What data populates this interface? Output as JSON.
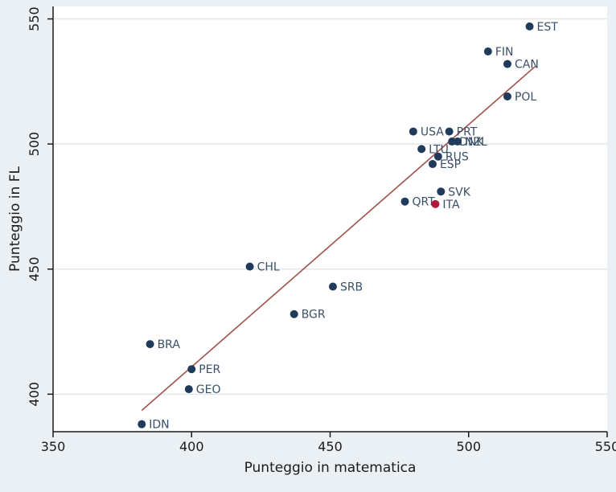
{
  "chart_data": {
    "type": "scatter",
    "title": "",
    "xlabel": "Punteggio in matematica",
    "ylabel": "Punteggio in FL",
    "xlim": [
      350,
      550
    ],
    "ylim": [
      385,
      555
    ],
    "xticks": [
      350,
      400,
      450,
      500,
      550
    ],
    "yticks": [
      400,
      450,
      500,
      550
    ],
    "grid": "horizontal",
    "legend": "none",
    "colors": {
      "background": "#eaf0f3",
      "plot_background": "#ffffff",
      "grid": "#e1e8ec",
      "point": "#1f3a5a",
      "highlight_point": "#b2183a",
      "label": "#3a4f68",
      "fit_line": "#a0504c"
    },
    "points": [
      {
        "label": "EST",
        "x": 522,
        "y": 547
      },
      {
        "label": "FIN",
        "x": 507,
        "y": 537
      },
      {
        "label": "CAN",
        "x": 514,
        "y": 532
      },
      {
        "label": "POL",
        "x": 514,
        "y": 519
      },
      {
        "label": "USA",
        "x": 480,
        "y": 505
      },
      {
        "label": "PRT",
        "x": 493,
        "y": 505
      },
      {
        "label": "DNK",
        "x": 494,
        "y": 501
      },
      {
        "label": "NZL",
        "x": 496,
        "y": 501
      },
      {
        "label": "LTU",
        "x": 483,
        "y": 498
      },
      {
        "label": "RUS",
        "x": 489,
        "y": 495
      },
      {
        "label": "ESP",
        "x": 487,
        "y": 492
      },
      {
        "label": "SVK",
        "x": 490,
        "y": 481
      },
      {
        "label": "QRT",
        "x": 477,
        "y": 477
      },
      {
        "label": "ITA",
        "x": 488,
        "y": 476,
        "highlight": true
      },
      {
        "label": "CHL",
        "x": 421,
        "y": 451
      },
      {
        "label": "SRB",
        "x": 451,
        "y": 443
      },
      {
        "label": "BGR",
        "x": 437,
        "y": 432
      },
      {
        "label": "BRA",
        "x": 385,
        "y": 420
      },
      {
        "label": "PER",
        "x": 400,
        "y": 410
      },
      {
        "label": "GEO",
        "x": 399,
        "y": 402
      },
      {
        "label": "IDN",
        "x": 382,
        "y": 388
      }
    ],
    "fit_line": {
      "x": [
        382,
        524
      ],
      "y": [
        393.5,
        531
      ]
    }
  }
}
